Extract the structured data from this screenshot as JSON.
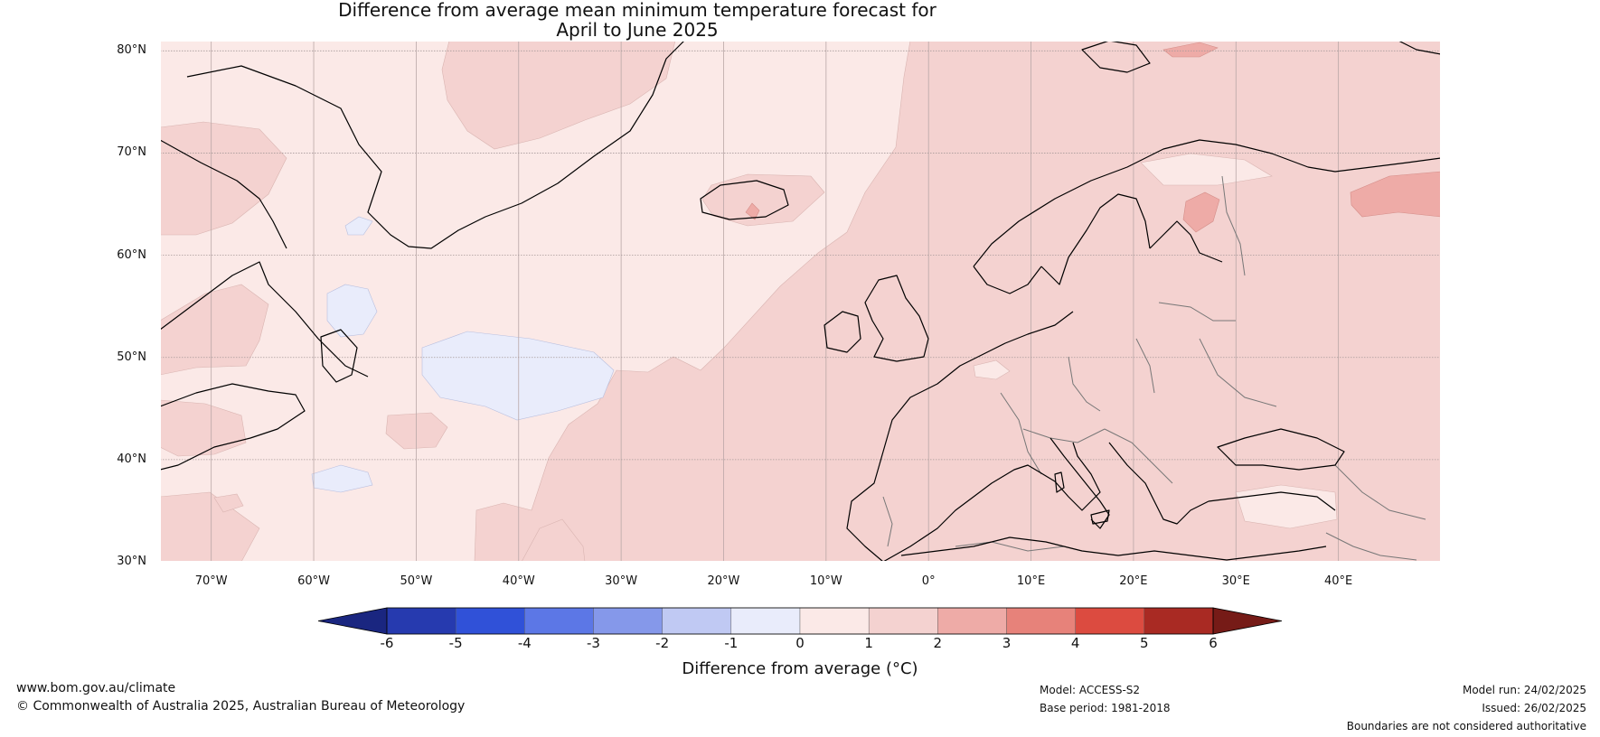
{
  "title": {
    "line1": "Difference from average mean minimum temperature forecast for",
    "line2": "April to June 2025"
  },
  "map": {
    "lon_range": [
      -75,
      50
    ],
    "lat_range": [
      30,
      81
    ],
    "projection": "equirectangular",
    "graticule": "on",
    "lat_labels": [
      "80°N",
      "70°N",
      "60°N",
      "50°N",
      "40°N",
      "30°N"
    ],
    "lat_values": [
      80,
      70,
      60,
      50,
      40,
      30
    ],
    "lon_labels": [
      "70°W",
      "60°W",
      "50°W",
      "40°W",
      "30°W",
      "20°W",
      "10°W",
      "0°",
      "10°E",
      "20°E",
      "30°E",
      "40°E"
    ],
    "lon_values": [
      -70,
      -60,
      -50,
      -40,
      -30,
      -20,
      -10,
      0,
      10,
      20,
      30,
      40
    ],
    "field_colors": {
      "zero_to_one": "#fbe9e7",
      "one_to_two": "#f4d2d0",
      "two_to_three": "#eeaba7",
      "minus_one_to_zero": "#e9ecfb"
    },
    "coast_color": "#000000",
    "border_color": "#777777"
  },
  "colorbar": {
    "levels": [
      "-6",
      "-5",
      "-4",
      "-3",
      "-2",
      "-1",
      "0",
      "1",
      "2",
      "3",
      "4",
      "5",
      "6"
    ],
    "colors": [
      "#263aaf",
      "#3051d8",
      "#5c77e6",
      "#8598ea",
      "#c0c9f3",
      "#e9ecfb",
      "#fbe9e7",
      "#f4d2d0",
      "#eeaba7",
      "#e7827a",
      "#dc4b40",
      "#a92a23"
    ],
    "under_color": "#1a2680",
    "over_color": "#761b17",
    "label": "Difference from average (°C)"
  },
  "footer": {
    "website": "www.bom.gov.au/climate",
    "copyright": "© Commonwealth of Australia 2025, Australian Bureau of Meteorology",
    "model": "Model: ACCESS-S2",
    "base_period": "Base period: 1981-2018",
    "model_run": "Model run: 24/02/2025",
    "issued": "Issued: 26/02/2025",
    "disclaimer": "Boundaries are not considered authoritative"
  }
}
